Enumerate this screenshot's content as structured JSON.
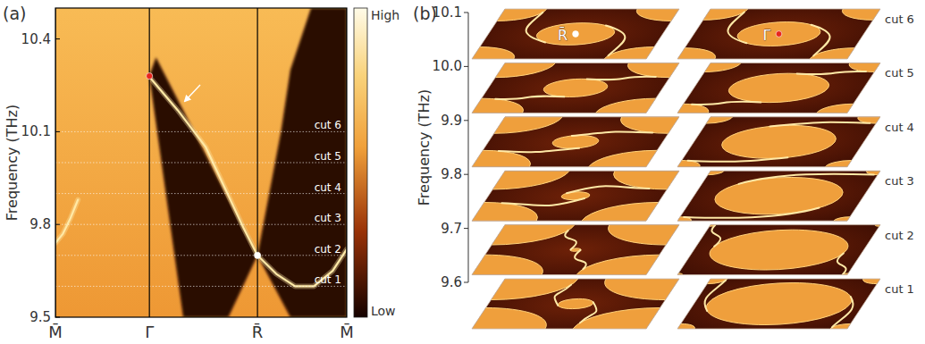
{
  "chart_data": [
    {
      "type": "band_structure",
      "panel_label": "(a)",
      "y_label": "Frequency (THz)",
      "xlim": [
        0,
        3.1
      ],
      "xticks": [
        {
          "value": 0,
          "label": "M̄"
        },
        {
          "value": 1,
          "label": "Γ̄"
        },
        {
          "value": 2.15,
          "label": "R̄"
        },
        {
          "value": 3.1,
          "label": "M̄"
        }
      ],
      "ylim": [
        9.5,
        10.5
      ],
      "yticks": [
        9.5,
        9.8,
        10.1,
        10.4
      ],
      "cuts": [
        {
          "value": 9.6,
          "label": "cut 1"
        },
        {
          "value": 9.7,
          "label": "cut 2"
        },
        {
          "value": 9.8,
          "label": "cut 3"
        },
        {
          "value": 9.9,
          "label": "cut 4"
        },
        {
          "value": 10.0,
          "label": "cut 5"
        },
        {
          "value": 10.1,
          "label": "cut 6"
        }
      ],
      "gap_regions": [
        {
          "x": [
            1.0,
            1.36,
            1.84,
            2.15,
            1.07
          ],
          "y": [
            10.28,
            9.5,
            9.5,
            9.7,
            10.34
          ]
        },
        {
          "x": [
            2.15,
            2.5,
            3.1,
            3.1,
            2.72,
            2.5,
            2.4
          ],
          "y": [
            9.7,
            9.5,
            9.5,
            10.5,
            10.5,
            10.3,
            10.1
          ]
        }
      ],
      "series": [
        {
          "color": "#ffe9a6",
          "x": [
            1.02,
            1.3,
            1.6,
            1.8,
            2.0,
            2.15
          ],
          "values": [
            10.27,
            10.17,
            10.05,
            9.92,
            9.79,
            9.7
          ]
        },
        {
          "color": "#ffe9a6",
          "x": [
            2.15,
            2.35,
            2.55,
            2.75,
            2.95,
            3.1
          ],
          "values": [
            9.7,
            9.64,
            9.6,
            9.6,
            9.65,
            9.72
          ]
        },
        {
          "color": "#ffe9a6",
          "x": [
            0,
            0.08,
            0.16,
            0.24
          ],
          "values": [
            9.74,
            9.77,
            9.82,
            9.88
          ]
        }
      ],
      "special_points": [
        {
          "x": 1,
          "y": 10.28,
          "color": "#e8251c"
        },
        {
          "x": 2.15,
          "y": 9.7,
          "color": "#ffffff"
        }
      ],
      "colorbar": {
        "labels": [
          "High",
          "Low"
        ]
      }
    },
    {
      "type": "isofrequency_slices",
      "panel_label": "(b)",
      "y_label": "Frequency (THz)",
      "ylim": [
        9.6,
        10.1
      ],
      "yticks": [
        9.6,
        9.7,
        9.8,
        9.9,
        {
          "value": 10,
          "label": "10.0"
        },
        10.1
      ],
      "center_labels": [
        "R̄",
        "Γ̄"
      ],
      "slices": [
        {
          "label": "cut 1",
          "frequency": 9.6,
          "gamma_radius": 0.42,
          "r_radius": 0.1,
          "arc_angle": -20
        },
        {
          "label": "cut 2",
          "frequency": 9.7,
          "gamma_radius": 0.4,
          "r_radius": 0.03,
          "arc_angle": 10
        },
        {
          "label": "cut 3",
          "frequency": 9.8,
          "gamma_radius": 0.37,
          "r_radius": 0.08,
          "arc_angle": 40
        },
        {
          "label": "cut 4",
          "frequency": 9.9,
          "gamma_radius": 0.33,
          "r_radius": 0.13,
          "arc_angle": 70
        },
        {
          "label": "cut 5",
          "frequency": 10.0,
          "gamma_radius": 0.29,
          "r_radius": 0.18,
          "arc_angle": 100
        },
        {
          "label": "cut 6",
          "frequency": 10.1,
          "gamma_radius": 0.24,
          "r_radius": 0.22,
          "arc_angle": 130
        }
      ]
    }
  ]
}
